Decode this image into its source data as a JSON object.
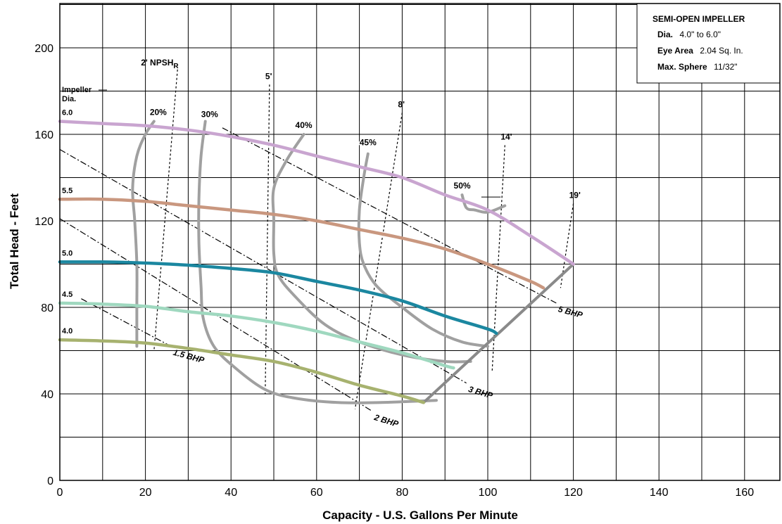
{
  "chart_data": {
    "type": "line",
    "xlabel": "Capacity - U.S. Gallons Per Minute",
    "ylabel": "Total Head - Feet",
    "xlim": [
      0,
      168
    ],
    "ylim": [
      0,
      220
    ],
    "x_ticks": [
      "0",
      "20",
      "40",
      "60",
      "80",
      "100",
      "120",
      "140",
      "160"
    ],
    "y_ticks": [
      "0",
      "40",
      "80",
      "120",
      "160",
      "200"
    ],
    "grid": true,
    "info_box": {
      "title": "SEMI-OPEN IMPELLER",
      "dia_key": "Dia.",
      "dia_val": "4.0\" to 6.0\"",
      "eye_key": "Eye Area",
      "eye_val": "2.04 Sq. In.",
      "sphere_key": "Max. Sphere",
      "sphere_val": "11/32\""
    },
    "impeller_label": [
      "Impeller",
      "Dia."
    ],
    "series": [
      {
        "name": "6.0",
        "color": "#c9a5d0",
        "points": [
          [
            0,
            166
          ],
          [
            10,
            165
          ],
          [
            20,
            164
          ],
          [
            30,
            162
          ],
          [
            40,
            159
          ],
          [
            50,
            155
          ],
          [
            60,
            150
          ],
          [
            70,
            145
          ],
          [
            80,
            140
          ],
          [
            90,
            132
          ],
          [
            100,
            125
          ],
          [
            110,
            113
          ],
          [
            120,
            100
          ]
        ]
      },
      {
        "name": "5.5",
        "color": "#c9977f",
        "points": [
          [
            0,
            130
          ],
          [
            10,
            130
          ],
          [
            20,
            129
          ],
          [
            30,
            127
          ],
          [
            40,
            125
          ],
          [
            50,
            123
          ],
          [
            60,
            120
          ],
          [
            70,
            116
          ],
          [
            80,
            112
          ],
          [
            90,
            107
          ],
          [
            100,
            100
          ],
          [
            110,
            92
          ],
          [
            113,
            89
          ]
        ]
      },
      {
        "name": "5.0",
        "color": "#1b87a0",
        "points": [
          [
            0,
            101
          ],
          [
            10,
            101
          ],
          [
            20,
            100.5
          ],
          [
            30,
            99.5
          ],
          [
            40,
            98
          ],
          [
            50,
            96
          ],
          [
            60,
            92
          ],
          [
            70,
            88
          ],
          [
            80,
            83
          ],
          [
            90,
            76
          ],
          [
            100,
            70
          ],
          [
            102,
            68
          ]
        ]
      },
      {
        "name": "4.5",
        "color": "#9fd8bf",
        "points": [
          [
            0,
            82
          ],
          [
            10,
            81.5
          ],
          [
            20,
            80.5
          ],
          [
            30,
            78
          ],
          [
            40,
            76
          ],
          [
            50,
            73
          ],
          [
            60,
            69
          ],
          [
            70,
            64
          ],
          [
            80,
            59
          ],
          [
            90,
            53
          ],
          [
            92,
            52
          ]
        ]
      },
      {
        "name": "4.0",
        "color": "#a7b26f",
        "points": [
          [
            0,
            65
          ],
          [
            10,
            64.5
          ],
          [
            20,
            63.5
          ],
          [
            30,
            61
          ],
          [
            40,
            58
          ],
          [
            50,
            55
          ],
          [
            60,
            50
          ],
          [
            70,
            44
          ],
          [
            80,
            39
          ],
          [
            85,
            36
          ]
        ]
      }
    ],
    "efficiency": [
      {
        "label": "20%",
        "points": [
          [
            22,
            166
          ],
          [
            20,
            160
          ],
          [
            18,
            150
          ],
          [
            17,
            135
          ],
          [
            17.5,
            120
          ],
          [
            18,
            100
          ],
          [
            18,
            80
          ],
          [
            18,
            62
          ]
        ]
      },
      {
        "label": "30%",
        "points": [
          [
            34,
            166
          ],
          [
            33,
            150
          ],
          [
            32.5,
            130
          ],
          [
            32.5,
            110
          ],
          [
            33,
            90
          ],
          [
            33.5,
            75
          ],
          [
            36,
            62
          ],
          [
            41,
            52
          ],
          [
            48,
            42
          ],
          [
            55,
            38
          ],
          [
            65,
            36
          ],
          [
            75,
            36
          ],
          [
            88,
            37
          ]
        ]
      },
      {
        "label": "40%",
        "points": [
          [
            57,
            160
          ],
          [
            53,
            148
          ],
          [
            50,
            135
          ],
          [
            50,
            120
          ],
          [
            50,
            105
          ],
          [
            51,
            95
          ],
          [
            55,
            85
          ],
          [
            62,
            72
          ],
          [
            70,
            64
          ],
          [
            80,
            58
          ],
          [
            90,
            55
          ],
          [
            96,
            55
          ]
        ]
      },
      {
        "label": "45%",
        "points": [
          [
            72,
            151
          ],
          [
            71,
            140
          ],
          [
            70,
            125
          ],
          [
            70,
            110
          ],
          [
            71,
            100
          ],
          [
            74,
            90
          ],
          [
            80,
            80
          ],
          [
            87,
            70
          ],
          [
            94,
            64
          ],
          [
            100,
            62
          ]
        ]
      },
      {
        "label": "50%",
        "points": [
          [
            94,
            132
          ],
          [
            95,
            126
          ],
          [
            97,
            125
          ],
          [
            100,
            124
          ],
          [
            104,
            127
          ]
        ]
      }
    ],
    "efficiency_label_pos": {
      "20%": [
        23,
        169
      ],
      "30%": [
        35,
        168
      ],
      "40%": [
        57,
        163
      ],
      "45%": [
        72,
        155
      ],
      "50%": [
        94,
        135
      ]
    },
    "npsh": [
      {
        "label": "2'",
        "sub": "R",
        "prefix": "NPSH",
        "points": [
          [
            27.5,
            190
          ],
          [
            22,
            60
          ]
        ]
      },
      {
        "label": "5'",
        "points": [
          [
            49,
            183
          ],
          [
            48,
            40
          ]
        ]
      },
      {
        "label": "8'",
        "points": [
          [
            80,
            170
          ],
          [
            69,
            33
          ]
        ]
      },
      {
        "label": "14'",
        "points": [
          [
            104,
            155
          ],
          [
            101,
            50
          ]
        ]
      },
      {
        "label": "19'",
        "points": [
          [
            120,
            128
          ],
          [
            117,
            89
          ]
        ]
      }
    ],
    "bhp": [
      {
        "label": "1.5 BHP",
        "points": [
          [
            5,
            84
          ],
          [
            26,
            62
          ]
        ]
      },
      {
        "label": "2 BHP",
        "points": [
          [
            0,
            121
          ],
          [
            73,
            32
          ]
        ]
      },
      {
        "label": "3 BHP",
        "points": [
          [
            0,
            153
          ],
          [
            95,
            45
          ]
        ]
      },
      {
        "label": "5 BHP",
        "points": [
          [
            38,
            163
          ],
          [
            116,
            82
          ]
        ]
      }
    ],
    "runout_line": [
      [
        85,
        36
      ],
      [
        120,
        100
      ]
    ]
  }
}
